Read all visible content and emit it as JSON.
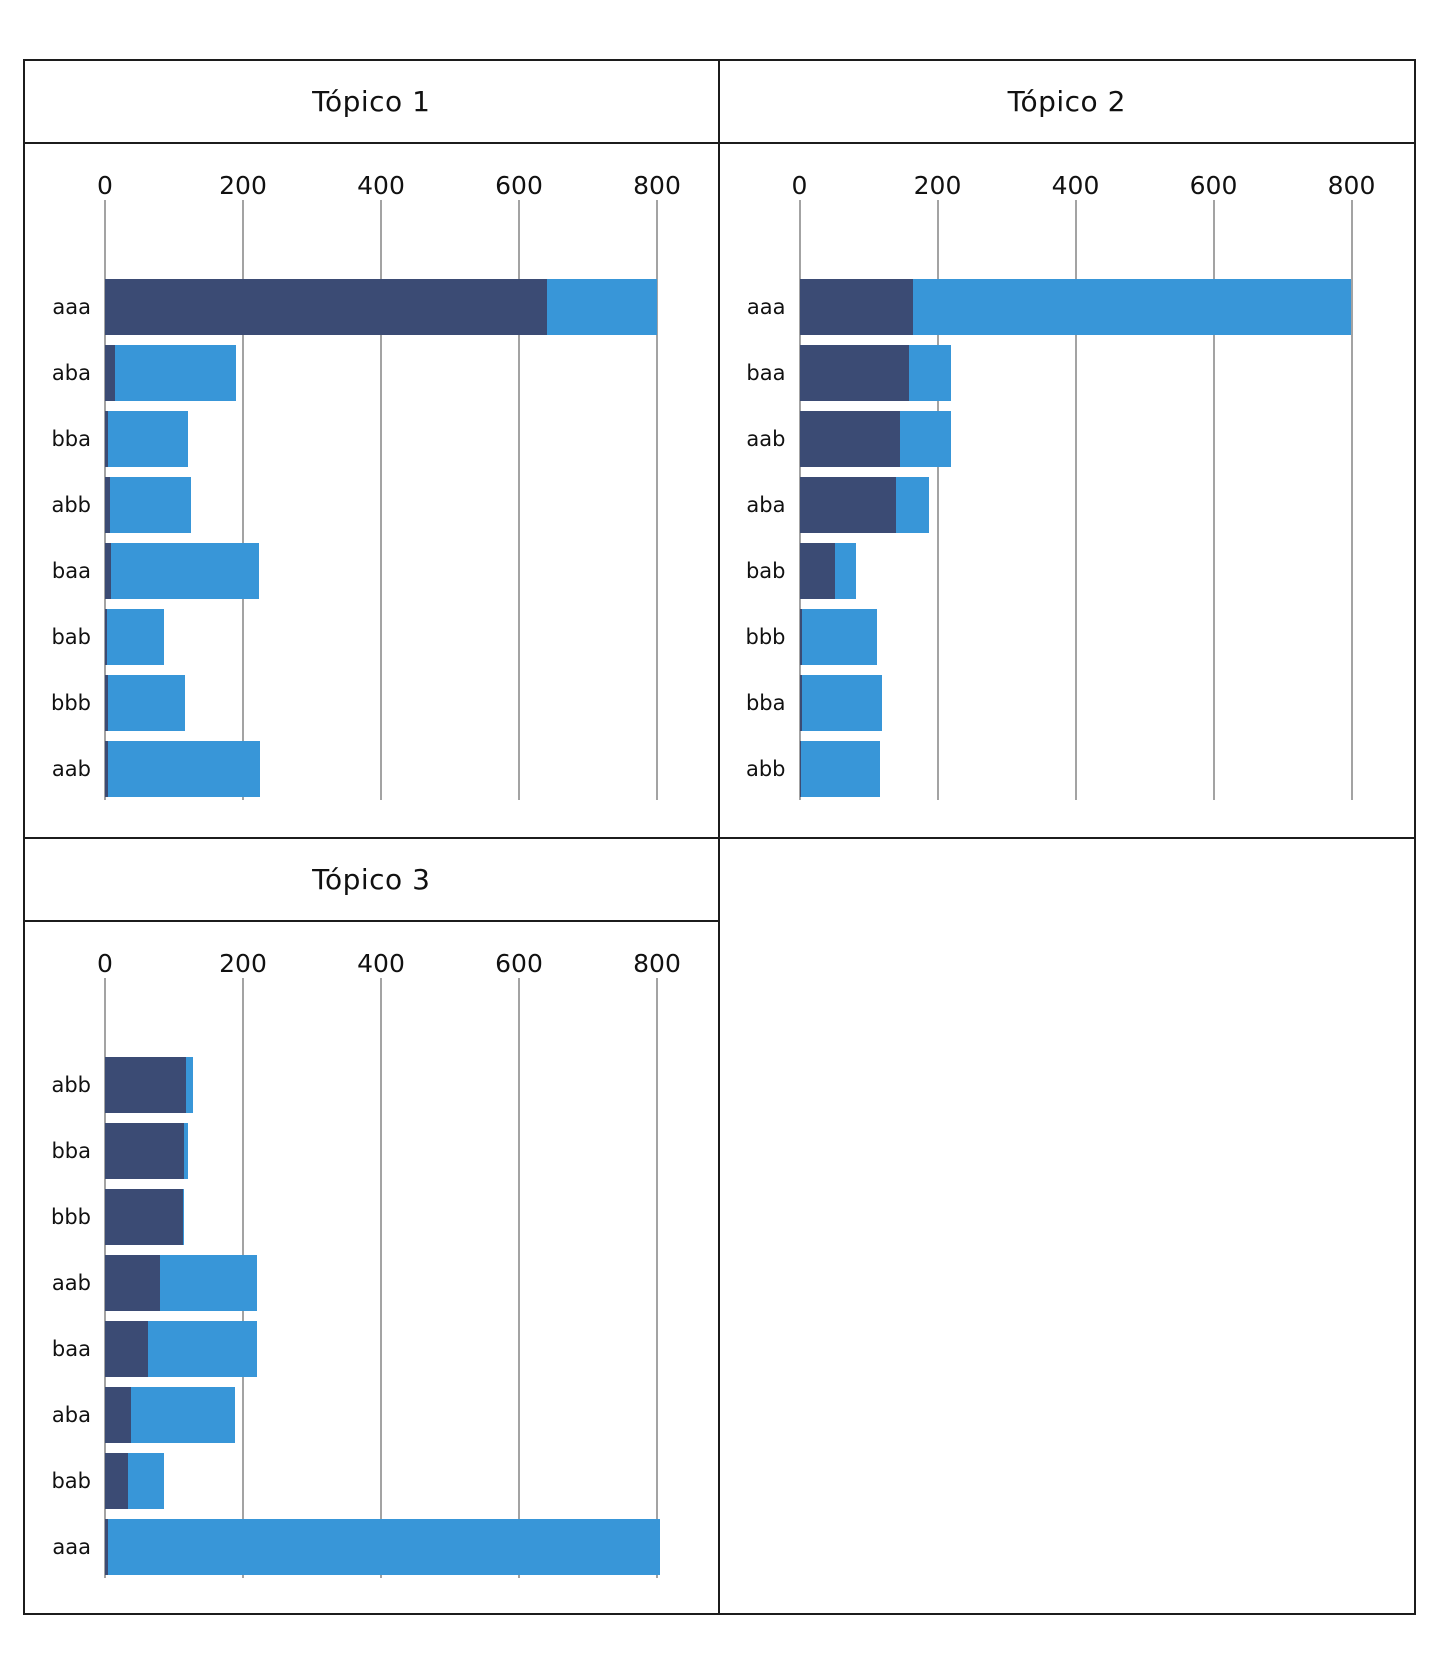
{
  "colors": {
    "background": "#ffffff",
    "frame_border": "#1c1c1c",
    "gridline": "#a3a3a3",
    "text": "#111111",
    "bar_dark": "#3B4B74",
    "bar_light": "#3896D8"
  },
  "chart_data": [
    {
      "type": "bar",
      "orientation": "horizontal",
      "stacked": true,
      "title": "Tópico 1",
      "categories": [
        "aaa",
        "aba",
        "bba",
        "abb",
        "baa",
        "bab",
        "bbb",
        "aab"
      ],
      "series": [
        {
          "name": "dark",
          "color": "#3B4B74",
          "values": [
            640,
            15,
            5,
            7,
            8,
            3,
            4,
            4
          ]
        },
        {
          "name": "light",
          "color": "#3896D8",
          "values": [
            160,
            175,
            115,
            118,
            215,
            83,
            112,
            220
          ]
        }
      ],
      "xticks": [
        0,
        200,
        400,
        600,
        800
      ],
      "xlim": [
        0,
        890
      ],
      "grid": true,
      "legend": false
    },
    {
      "type": "bar",
      "orientation": "horizontal",
      "stacked": true,
      "title": "Tópico 2",
      "categories": [
        "aaa",
        "baa",
        "aab",
        "aba",
        "bab",
        "bbb",
        "bba",
        "abb"
      ],
      "series": [
        {
          "name": "dark",
          "color": "#3B4B74",
          "values": [
            165,
            158,
            145,
            140,
            51,
            3,
            3,
            2
          ]
        },
        {
          "name": "light",
          "color": "#3896D8",
          "values": [
            635,
            62,
            75,
            48,
            31,
            110,
            116,
            115
          ]
        }
      ],
      "xticks": [
        0,
        200,
        400,
        600,
        800
      ],
      "xlim": [
        0,
        890
      ],
      "grid": true,
      "legend": false
    },
    {
      "type": "bar",
      "orientation": "horizontal",
      "stacked": true,
      "title": "Tópico 3",
      "categories": [
        "abb",
        "bba",
        "bbb",
        "aab",
        "baa",
        "aba",
        "bab",
        "aaa"
      ],
      "series": [
        {
          "name": "dark",
          "color": "#3B4B74",
          "values": [
            118,
            115,
            113,
            80,
            63,
            38,
            34,
            5
          ]
        },
        {
          "name": "light",
          "color": "#3896D8",
          "values": [
            10,
            6,
            2,
            141,
            158,
            151,
            52,
            800
          ]
        }
      ],
      "xticks": [
        0,
        200,
        400,
        600,
        800
      ],
      "xlim": [
        0,
        890
      ],
      "grid": true,
      "legend": false
    }
  ]
}
